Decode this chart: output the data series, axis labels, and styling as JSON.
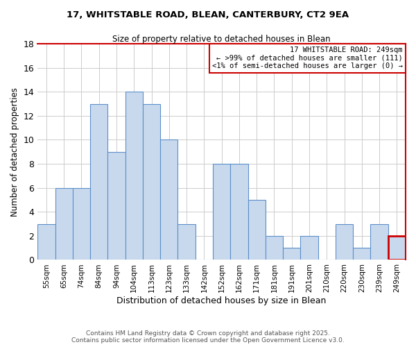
{
  "title_line1": "17, WHITSTABLE ROAD, BLEAN, CANTERBURY, CT2 9EA",
  "title_line2": "Size of property relative to detached houses in Blean",
  "xlabel": "Distribution of detached houses by size in Blean",
  "ylabel": "Number of detached properties",
  "categories": [
    "55sqm",
    "65sqm",
    "74sqm",
    "84sqm",
    "94sqm",
    "104sqm",
    "113sqm",
    "123sqm",
    "133sqm",
    "142sqm",
    "152sqm",
    "162sqm",
    "171sqm",
    "181sqm",
    "191sqm",
    "201sqm",
    "210sqm",
    "220sqm",
    "230sqm",
    "239sqm",
    "249sqm"
  ],
  "values": [
    3,
    6,
    6,
    13,
    9,
    14,
    13,
    10,
    3,
    0,
    8,
    8,
    5,
    2,
    1,
    2,
    0,
    3,
    1,
    3,
    2
  ],
  "bar_color": "#c8d9ee",
  "bar_edge_color": "#5b8fc9",
  "highlight_index": 20,
  "highlight_box_color": "#cc0000",
  "legend_title": "17 WHITSTABLE ROAD: 249sqm",
  "legend_line1": "← >99% of detached houses are smaller (111)",
  "legend_line2": "<1% of semi-detached houses are larger (0) →",
  "ylim": [
    0,
    18
  ],
  "yticks": [
    0,
    2,
    4,
    6,
    8,
    10,
    12,
    14,
    16,
    18
  ],
  "footer_line1": "Contains HM Land Registry data © Crown copyright and database right 2025.",
  "footer_line2": "Contains public sector information licensed under the Open Government Licence v3.0.",
  "background_color": "#ffffff",
  "grid_color": "#cccccc"
}
